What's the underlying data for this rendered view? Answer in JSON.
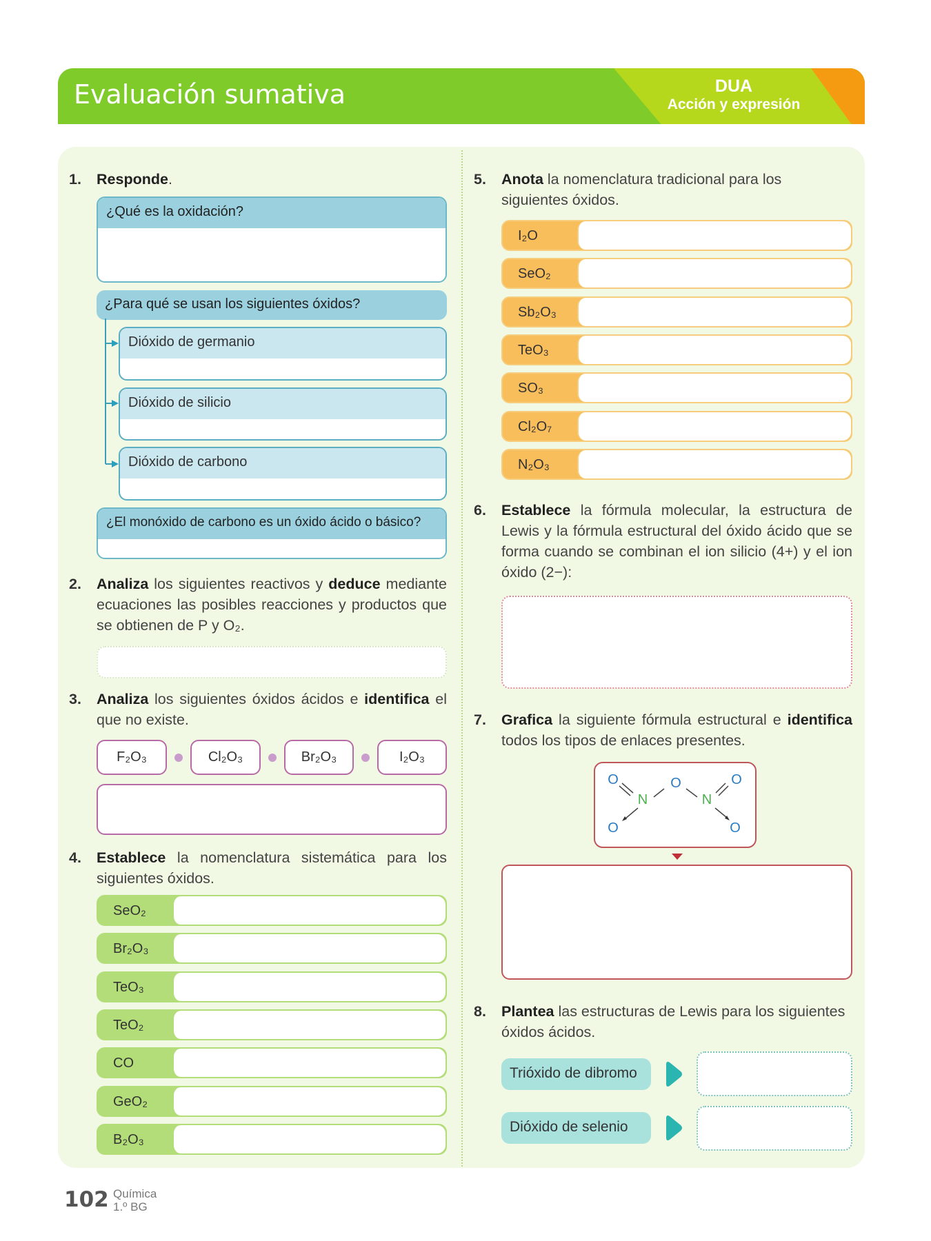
{
  "header": {
    "title": "Evaluación sumativa",
    "badge_title": "DUA",
    "badge_subtitle": "Acción y expresión"
  },
  "colors": {
    "header_green": "#7fcb2a",
    "badge_lime": "#b5d81d",
    "badge_orange": "#f59b12",
    "panel": "#f1f8e4",
    "q1_blue": "#9bd1de",
    "q3_purple": "#b86aa6",
    "q4_green": "#b3dd78",
    "q5_orange": "#f9be5c",
    "q7_red": "#c0565a",
    "q8_teal": "#2ab5b0"
  },
  "q1": {
    "num": "1.",
    "verb": "Responde",
    "rest": ".",
    "box1": "¿Qué es la oxidación?",
    "box2": "¿Para qué se usan los siguientes óxidos?",
    "subs": [
      "Dióxido de germanio",
      "Dióxido de silicio",
      "Dióxido de carbono"
    ],
    "box3": "¿El monóxido de carbono es un óxido ácido o básico?"
  },
  "q2": {
    "num": "2.",
    "b1": "Analiza",
    "t1": " los siguientes reactivos y ",
    "b2": "deduce",
    "t2": " mediante ecuaciones las posibles reacciones y productos que se obtienen de P y O₂."
  },
  "q3": {
    "num": "3.",
    "b1": "Analiza",
    "t1": " los siguientes óxidos ácidos e ",
    "b2": "identifica",
    "t2": " el que no existe.",
    "options": [
      "F₂O₃",
      "Cl₂O₃",
      "Br₂O₃",
      "I₂O₃"
    ]
  },
  "q4": {
    "num": "4.",
    "b1": "Establece",
    "t1": " la nomenclatura sistemática para los siguientes óxidos.",
    "rows": [
      "SeO₂",
      "Br₂O₃",
      "TeO₃",
      "TeO₂",
      "CO",
      "GeO₂",
      "B₂O₃"
    ]
  },
  "q5": {
    "num": "5.",
    "b1": "Anota",
    "t1": " la nomenclatura tradicional para los siguientes óxidos.",
    "rows": [
      "I₂O",
      "SeO₂",
      "Sb₂O₃",
      "TeO₃",
      "SO₃",
      "Cl₂O₇",
      "N₂O₃"
    ]
  },
  "q6": {
    "num": "6.",
    "b1": "Establece",
    "t1": " la fórmula molecular, la estructura de Lewis y la fórmula estructural del óxido ácido que se forma cuando se combinan el ion silicio (4+) y el ion óxido (2−):"
  },
  "q7": {
    "num": "7.",
    "b1": "Grafica",
    "t1": " la siguiente fórmula estructural e ",
    "b2": "identifica",
    "t2": " todos los tipos de enlaces presentes.",
    "atoms": {
      "o": "O",
      "n": "N"
    }
  },
  "q8": {
    "num": "8.",
    "b1": "Plantea",
    "t1": " las estructuras de Lewis para los siguientes óxidos ácidos.",
    "items": [
      "Trióxido de dibromo",
      "Dióxido de selenio"
    ]
  },
  "footer": {
    "page": "102",
    "subject": "Química",
    "grade": "1.º BG"
  }
}
